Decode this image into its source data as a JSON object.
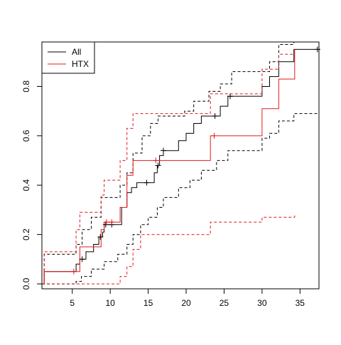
{
  "chart_data": {
    "type": "line",
    "subtype": "step (cumulative incidence with confidence bands and censoring marks)",
    "title": "",
    "xlabel": "",
    "ylabel": "",
    "xlim": [
      1,
      37.5
    ],
    "ylim": [
      -0.02,
      0.98
    ],
    "x_ticks": [
      5,
      10,
      15,
      20,
      25,
      30,
      35
    ],
    "y_ticks": [
      0.0,
      0.2,
      0.4,
      0.6,
      0.8
    ],
    "x_tick_labels": [
      "5",
      "10",
      "15",
      "20",
      "25",
      "30",
      "35"
    ],
    "y_tick_labels": [
      "0.0",
      "0.2",
      "0.4",
      "0.6",
      "0.8"
    ],
    "legend": {
      "position": "top-left",
      "entries": [
        {
          "label": "All",
          "color": "#000000"
        },
        {
          "label": "HTX",
          "color": "#e41a1c"
        }
      ]
    },
    "series": [
      {
        "name": "All",
        "color": "#000000",
        "line": "solid",
        "points": [
          [
            1,
            0
          ],
          [
            1.3,
            0.05
          ],
          [
            5.5,
            0.08
          ],
          [
            6,
            0.1
          ],
          [
            6.8,
            0.13
          ],
          [
            7.8,
            0.16
          ],
          [
            8.5,
            0.19
          ],
          [
            9,
            0.21
          ],
          [
            9.2,
            0.24
          ],
          [
            11.5,
            0.31
          ],
          [
            12.2,
            0.37
          ],
          [
            12.8,
            0.39
          ],
          [
            13.5,
            0.41
          ],
          [
            15.8,
            0.45
          ],
          [
            16.2,
            0.48
          ],
          [
            16.5,
            0.52
          ],
          [
            17,
            0.54
          ],
          [
            19,
            0.58
          ],
          [
            20,
            0.61
          ],
          [
            21,
            0.65
          ],
          [
            22,
            0.68
          ],
          [
            24.5,
            0.72
          ],
          [
            25.5,
            0.76
          ],
          [
            30,
            0.8
          ],
          [
            31,
            0.84
          ],
          [
            32.2,
            0.9
          ],
          [
            34.2,
            0.95
          ],
          [
            37.5,
            0.95
          ]
        ],
        "censor_marks": [
          [
            6.3,
            0.1
          ],
          [
            8.7,
            0.19
          ],
          [
            9.4,
            0.24
          ],
          [
            10.2,
            0.24
          ],
          [
            14.8,
            0.41
          ],
          [
            16.3,
            0.48
          ],
          [
            17,
            0.54
          ],
          [
            23.8,
            0.68
          ],
          [
            25.8,
            0.76
          ],
          [
            37.3,
            0.95
          ]
        ]
      },
      {
        "name": "",
        "color": "#000000",
        "line": "dashed",
        "points": [
          [
            1,
            0
          ],
          [
            1.3,
            0.12
          ],
          [
            5.5,
            0.16
          ],
          [
            6.3,
            0.22
          ],
          [
            7.5,
            0.27
          ],
          [
            8.8,
            0.35
          ],
          [
            11.3,
            0.4
          ],
          [
            12.2,
            0.45
          ],
          [
            13,
            0.53
          ],
          [
            14.2,
            0.6
          ],
          [
            15.3,
            0.65
          ],
          [
            16.3,
            0.68
          ],
          [
            19.8,
            0.7
          ],
          [
            21,
            0.74
          ],
          [
            23,
            0.78
          ],
          [
            24.5,
            0.81
          ],
          [
            26,
            0.86
          ],
          [
            31,
            0.9
          ],
          [
            32.2,
            0.97
          ],
          [
            34.2,
            0.98
          ],
          [
            34.3,
            0.98
          ]
        ]
      },
      {
        "name": "",
        "color": "#000000",
        "line": "dashed",
        "points": [
          [
            1,
            0
          ],
          [
            5.5,
            0.01
          ],
          [
            6.2,
            0.03
          ],
          [
            7.5,
            0.06
          ],
          [
            9.2,
            0.09
          ],
          [
            11,
            0.12
          ],
          [
            12.2,
            0.16
          ],
          [
            13,
            0.2
          ],
          [
            14,
            0.24
          ],
          [
            15,
            0.27
          ],
          [
            16.2,
            0.31
          ],
          [
            17,
            0.35
          ],
          [
            19,
            0.39
          ],
          [
            20.5,
            0.42
          ],
          [
            22,
            0.46
          ],
          [
            24,
            0.5
          ],
          [
            25.5,
            0.54
          ],
          [
            30,
            0.59
          ],
          [
            31,
            0.61
          ],
          [
            32.2,
            0.66
          ],
          [
            34.2,
            0.69
          ],
          [
            37.5,
            0.69
          ]
        ]
      },
      {
        "name": "HTX",
        "color": "#e41a1c",
        "line": "solid",
        "points": [
          [
            1,
            0
          ],
          [
            1.3,
            0.05
          ],
          [
            6,
            0.15
          ],
          [
            8.8,
            0.22
          ],
          [
            9.2,
            0.25
          ],
          [
            11.3,
            0.31
          ],
          [
            12.2,
            0.44
          ],
          [
            13,
            0.5
          ],
          [
            23.2,
            0.6
          ],
          [
            30,
            0.71
          ],
          [
            32.2,
            0.83
          ],
          [
            34.3,
            0.95
          ]
        ],
        "censor_marks": [
          [
            5.2,
            0.05
          ],
          [
            9.5,
            0.25
          ],
          [
            10.2,
            0.25
          ],
          [
            16,
            0.5
          ],
          [
            23.7,
            0.6
          ]
        ]
      },
      {
        "name": "",
        "color": "#e41a1c",
        "line": "dashed",
        "points": [
          [
            1,
            0
          ],
          [
            1.3,
            0.13
          ],
          [
            5.5,
            0.22
          ],
          [
            6,
            0.29
          ],
          [
            8.8,
            0.36
          ],
          [
            9.2,
            0.42
          ],
          [
            11.3,
            0.5
          ],
          [
            12.2,
            0.63
          ],
          [
            13,
            0.69
          ],
          [
            23.2,
            0.77
          ],
          [
            30,
            0.87
          ],
          [
            32.2,
            0.93
          ],
          [
            34.3,
            0.93
          ]
        ]
      },
      {
        "name": "",
        "color": "#e41a1c",
        "line": "dashed",
        "points": [
          [
            1,
            0
          ],
          [
            11.3,
            0.03
          ],
          [
            12.2,
            0.07
          ],
          [
            13,
            0.14
          ],
          [
            14,
            0.2
          ],
          [
            23.2,
            0.25
          ],
          [
            30,
            0.27
          ],
          [
            34.3,
            0.28
          ]
        ]
      }
    ]
  }
}
